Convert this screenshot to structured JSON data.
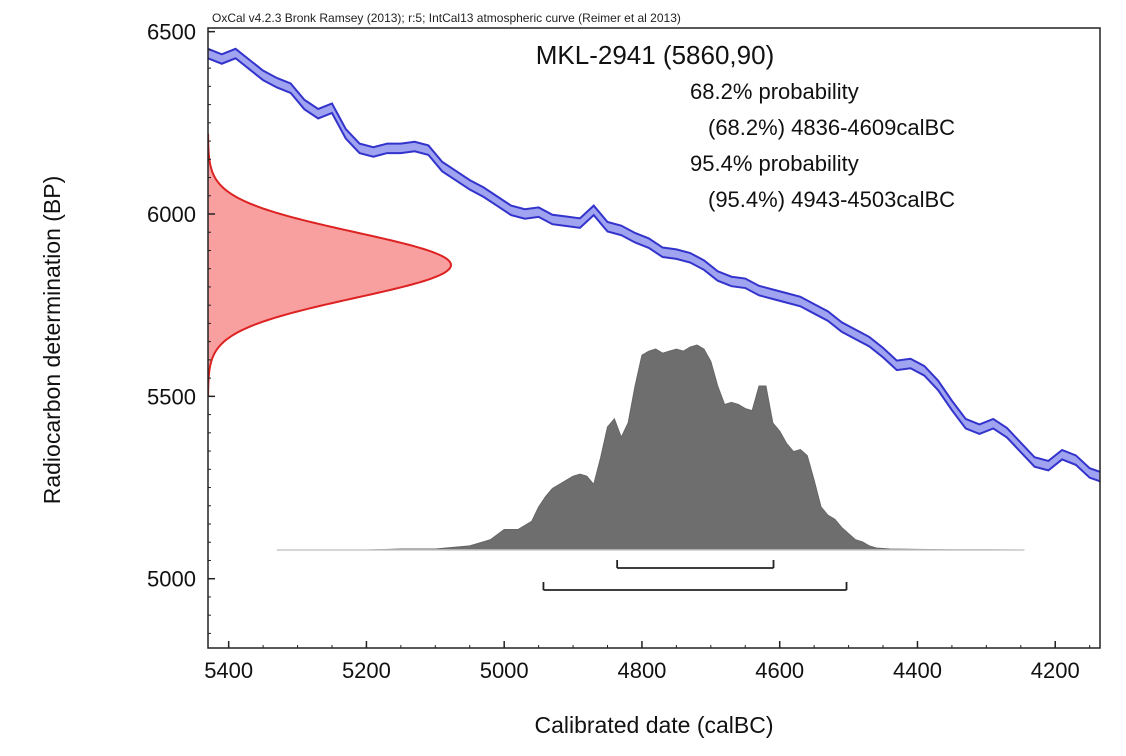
{
  "header_text": "OxCal v4.2.3 Bronk Ramsey (2013); r:5; IntCal13 atmospheric curve (Reimer et al 2013)",
  "chart_data": {
    "type": "area",
    "title": "MKL-2941 (5860,90)",
    "xlabel": "Calibrated date (calBC)",
    "ylabel": "Radiocarbon determination (BP)",
    "xlim": [
      5430,
      4135
    ],
    "ylim": [
      4810,
      6510
    ],
    "x_reversed": true,
    "x_ticks": [
      5400,
      5200,
      5000,
      4800,
      4600,
      4400,
      4200
    ],
    "y_ticks": [
      5000,
      5500,
      6000,
      6500
    ],
    "grid": false,
    "annotations": [
      "68.2% probability",
      "(68.2%) 4836-4609calBC",
      "95.4% probability",
      "(95.4%) 4943-4503calBC"
    ],
    "series": [
      {
        "kind": "calibration-curve-band",
        "color": "#3333cc",
        "fill": "#9fa3f0",
        "x": [
          5430,
          5410,
          5390,
          5370,
          5350,
          5330,
          5310,
          5290,
          5270,
          5250,
          5230,
          5210,
          5190,
          5170,
          5150,
          5130,
          5110,
          5090,
          5070,
          5050,
          5030,
          5010,
          4990,
          4970,
          4950,
          4930,
          4910,
          4890,
          4870,
          4850,
          4830,
          4810,
          4790,
          4770,
          4750,
          4730,
          4710,
          4690,
          4670,
          4650,
          4630,
          4610,
          4590,
          4570,
          4550,
          4530,
          4510,
          4490,
          4470,
          4450,
          4430,
          4410,
          4390,
          4370,
          4350,
          4330,
          4310,
          4290,
          4270,
          4250,
          4230,
          4210,
          4190,
          4170,
          4150,
          4135
        ],
        "y": [
          6440,
          6425,
          6440,
          6410,
          6380,
          6360,
          6345,
          6300,
          6275,
          6290,
          6220,
          6180,
          6170,
          6180,
          6180,
          6185,
          6175,
          6130,
          6105,
          6080,
          6060,
          6035,
          6010,
          6000,
          6005,
          5985,
          5980,
          5975,
          6010,
          5965,
          5955,
          5935,
          5920,
          5895,
          5890,
          5880,
          5860,
          5830,
          5815,
          5810,
          5790,
          5780,
          5770,
          5760,
          5740,
          5720,
          5690,
          5670,
          5650,
          5620,
          5585,
          5590,
          5570,
          5530,
          5475,
          5425,
          5410,
          5425,
          5400,
          5360,
          5320,
          5310,
          5340,
          5325,
          5290,
          5280
        ],
        "band_halfwidth": 13
      },
      {
        "kind": "radiocarbon-date-distribution",
        "color": "#dd2222",
        "fill": "#f8a0a0",
        "mean": 5860,
        "sigma": 90
      },
      {
        "kind": "calibrated-date-distribution",
        "color": "#666666",
        "fill": "#6e6e6e",
        "x": [
          5330,
          5200,
          5150,
          5100,
          5050,
          5020,
          5000,
          4980,
          4960,
          4950,
          4940,
          4930,
          4920,
          4910,
          4900,
          4890,
          4880,
          4870,
          4860,
          4850,
          4840,
          4830,
          4820,
          4810,
          4800,
          4790,
          4780,
          4770,
          4760,
          4750,
          4740,
          4730,
          4720,
          4710,
          4700,
          4690,
          4680,
          4670,
          4660,
          4650,
          4640,
          4630,
          4620,
          4610,
          4600,
          4590,
          4580,
          4570,
          4560,
          4550,
          4540,
          4530,
          4520,
          4510,
          4500,
          4490,
          4480,
          4470,
          4460,
          4440,
          4400,
          4350,
          4300,
          4245
        ],
        "y": [
          0,
          0,
          0.005,
          0.005,
          0.02,
          0.05,
          0.1,
          0.1,
          0.14,
          0.21,
          0.26,
          0.3,
          0.32,
          0.34,
          0.36,
          0.37,
          0.36,
          0.32,
          0.45,
          0.6,
          0.64,
          0.55,
          0.62,
          0.8,
          0.95,
          0.97,
          0.98,
          0.96,
          0.97,
          0.98,
          0.97,
          0.99,
          1.0,
          0.98,
          0.92,
          0.8,
          0.71,
          0.72,
          0.71,
          0.69,
          0.68,
          0.8,
          0.8,
          0.62,
          0.58,
          0.52,
          0.48,
          0.49,
          0.46,
          0.34,
          0.21,
          0.17,
          0.15,
          0.11,
          0.08,
          0.05,
          0.04,
          0.02,
          0.01,
          0.005,
          0.003,
          0.001,
          0.001,
          0
        ]
      }
    ],
    "ranges": [
      {
        "label": "68.2%",
        "from": 4836,
        "to": 4609
      },
      {
        "label": "95.4%",
        "from": 4943,
        "to": 4503
      }
    ]
  }
}
